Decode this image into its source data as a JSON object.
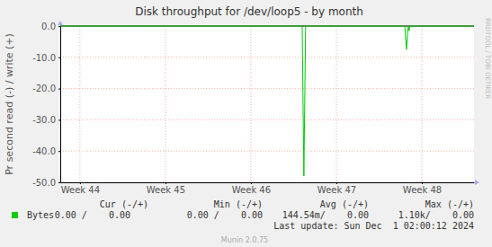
{
  "chart_data": {
    "type": "line",
    "title": "Disk throughput for /dev/loop5 - by month",
    "y_label": "Pr second read (-) / write (+)",
    "x": [
      43.77,
      44.5,
      45.5,
      46.5,
      46.6,
      46.62,
      46.64,
      47.5,
      47.8,
      47.82,
      47.84,
      47.85,
      47.86,
      48.2,
      48.61
    ],
    "series": [
      {
        "name": "Bytes",
        "color": "#00cc00",
        "values": [
          0,
          0,
          0,
          0,
          0,
          -48,
          0,
          0,
          0,
          -7.5,
          0,
          -1.5,
          0,
          0,
          0
        ]
      }
    ],
    "xlim": [
      43.77,
      48.61
    ],
    "xticks": [
      {
        "value": 44,
        "label": "Week 44"
      },
      {
        "value": 45,
        "label": "Week 45"
      },
      {
        "value": 46,
        "label": "Week 46"
      },
      {
        "value": 47,
        "label": "Week 47"
      },
      {
        "value": 48,
        "label": "Week 48"
      }
    ],
    "ylim": [
      -50,
      0
    ],
    "yticks": [
      {
        "value": 0,
        "label": "0.0"
      },
      {
        "value": -10,
        "label": "-10.0"
      },
      {
        "value": -20,
        "label": "-20.0"
      },
      {
        "value": -30,
        "label": "-30.0"
      },
      {
        "value": -40,
        "label": "-40.0"
      },
      {
        "value": -50,
        "label": "-50.0"
      }
    ],
    "grid": true,
    "annotations": {
      "watermark": "RRDTOOL / TOBI OETIKER",
      "stats_headers": [
        "Cur (-/+)",
        "Min (-/+)",
        "Avg (-/+)",
        "Max (-/+)"
      ],
      "stats_values": [
        "0.00 /    0.00",
        "0.00 /    0.00",
        "144.54m/    0.00",
        "1.10k/    0.00"
      ],
      "last_update": "Last update: Sun Dec  1 02:00:12 2024",
      "footer": "Munin 2.0.75"
    }
  }
}
